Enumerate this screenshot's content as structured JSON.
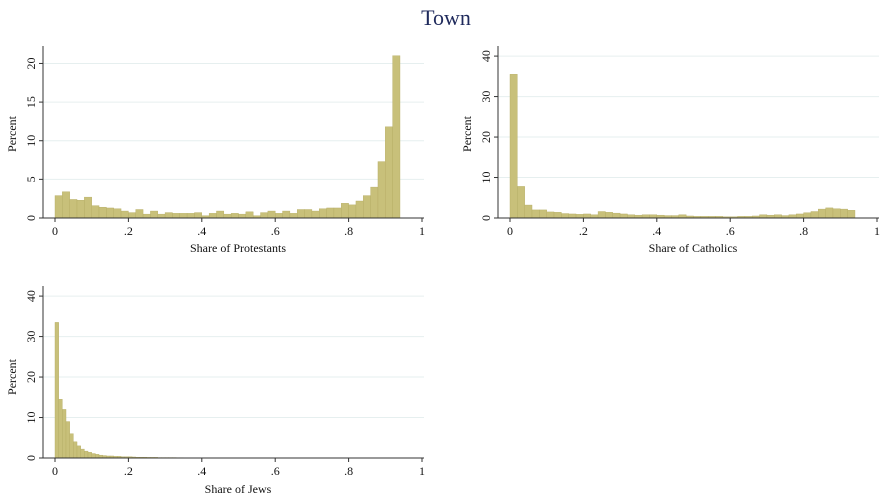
{
  "figure": {
    "title": "Town"
  },
  "colors": {
    "bar_fill": "#c8c07a",
    "bar_stroke": "#b4ab62",
    "title": "#1f2a5c",
    "grid": "#e6efef"
  },
  "chart_data": [
    {
      "type": "bar",
      "xlabel": "Share of Protestants",
      "ylabel": "Percent",
      "xlim": [
        0,
        1
      ],
      "ylim": [
        0,
        22
      ],
      "xticks": [
        "0",
        ".2",
        ".4",
        ".6",
        ".8",
        "1"
      ],
      "xtick_values": [
        0,
        0.2,
        0.4,
        0.6,
        0.8,
        1
      ],
      "yticks": [
        0,
        5,
        10,
        15,
        20
      ],
      "grid": true,
      "bin_width": 0.02,
      "values": [
        2.9,
        3.4,
        2.4,
        2.3,
        2.7,
        1.6,
        1.4,
        1.3,
        1.2,
        0.9,
        0.7,
        1.1,
        0.5,
        0.9,
        0.5,
        0.7,
        0.6,
        0.6,
        0.6,
        0.7,
        0.3,
        0.6,
        0.9,
        0.5,
        0.6,
        0.5,
        0.8,
        0.3,
        0.7,
        0.9,
        0.6,
        0.9,
        0.6,
        1.1,
        1.1,
        0.9,
        1.2,
        1.3,
        1.3,
        1.9,
        1.7,
        2.2,
        2.9,
        4.0,
        7.3,
        11.8,
        21.0
      ]
    },
    {
      "type": "bar",
      "xlabel": "Share of Catholics",
      "ylabel": "Percent",
      "xlim": [
        0,
        1
      ],
      "ylim": [
        0,
        42
      ],
      "xticks": [
        "0",
        ".2",
        ".4",
        ".6",
        ".8",
        "1"
      ],
      "xtick_values": [
        0,
        0.2,
        0.4,
        0.6,
        0.8,
        1
      ],
      "yticks": [
        0,
        10,
        20,
        30,
        40
      ],
      "grid": true,
      "bin_width": 0.02,
      "values": [
        35.5,
        7.8,
        3.2,
        2.0,
        2.0,
        1.5,
        1.4,
        1.1,
        1.0,
        0.9,
        1.0,
        0.8,
        1.6,
        1.4,
        1.2,
        1.0,
        0.8,
        0.7,
        0.8,
        0.8,
        0.7,
        0.6,
        0.6,
        0.8,
        0.5,
        0.4,
        0.4,
        0.4,
        0.4,
        0.3,
        0.3,
        0.4,
        0.4,
        0.5,
        0.8,
        0.7,
        0.8,
        0.6,
        0.8,
        1.0,
        1.3,
        1.6,
        2.2,
        2.5,
        2.3,
        2.2,
        1.9
      ]
    },
    {
      "type": "bar",
      "xlabel": "Share of Jews",
      "ylabel": "Percent",
      "xlim": [
        0,
        1
      ],
      "ylim": [
        0,
        42
      ],
      "xticks": [
        "0",
        ".2",
        ".4",
        ".6",
        ".8",
        "1"
      ],
      "xtick_values": [
        0,
        0.2,
        0.4,
        0.6,
        0.8,
        1
      ],
      "yticks": [
        0,
        10,
        20,
        30,
        40
      ],
      "grid": true,
      "bin_width": 0.01,
      "values": [
        33.5,
        14.5,
        12.0,
        9.0,
        6.0,
        4.0,
        3.0,
        2.2,
        1.7,
        1.4,
        1.1,
        0.9,
        0.7,
        0.6,
        0.5,
        0.5,
        0.4,
        0.4,
        0.3,
        0.3,
        0.3,
        0.25,
        0.2,
        0.2,
        0.2,
        0.15,
        0.15,
        0.15,
        0.1,
        0.1,
        0.1,
        0.1,
        0.1,
        0.08,
        0.08,
        0.06,
        0.06,
        0.05,
        0.05,
        0.05
      ]
    }
  ]
}
